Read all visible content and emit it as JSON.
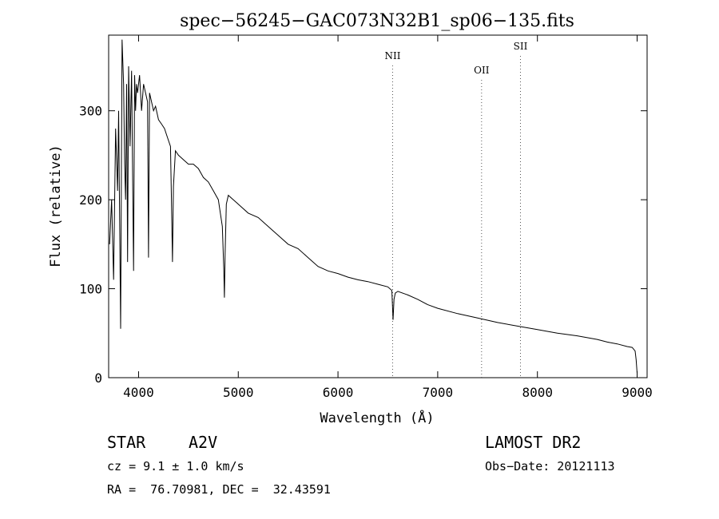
{
  "chart_data": {
    "type": "line",
    "title": "spec−56245−GAC073N32B1_sp06−135.fits",
    "xlabel": "Wavelength (Å)",
    "ylabel": "Flux (relative)",
    "xlim": [
      3700,
      9100
    ],
    "ylim": [
      0,
      385
    ],
    "x_ticks": [
      4000,
      5000,
      6000,
      7000,
      8000,
      9000
    ],
    "y_ticks": [
      0,
      100,
      200,
      300
    ],
    "grid": false,
    "line_color": "#000000",
    "reference_lines": [
      {
        "label": "NII",
        "wavelength": 6548
      },
      {
        "label": "OII",
        "wavelength": 7440
      },
      {
        "label": "SII",
        "wavelength": 7830
      }
    ],
    "series": [
      {
        "x": [
          3710,
          3730,
          3750,
          3770,
          3790,
          3800,
          3820,
          3835,
          3850,
          3860,
          3870,
          3880,
          3890,
          3900,
          3915,
          3930,
          3950,
          3960,
          3970,
          3980,
          3990,
          4010,
          4030,
          4050,
          4070,
          4090,
          4100,
          4110,
          4130,
          4150,
          4170,
          4200,
          4230,
          4260,
          4290,
          4320,
          4330,
          4340,
          4350,
          4370,
          4400,
          4450,
          4500,
          4550,
          4600,
          4650,
          4700,
          4750,
          4800,
          4840,
          4855,
          4861,
          4868,
          4880,
          4900,
          4950,
          5000,
          5100,
          5200,
          5300,
          5400,
          5500,
          5600,
          5700,
          5800,
          5900,
          6000,
          6100,
          6200,
          6300,
          6400,
          6500,
          6540,
          6552,
          6562,
          6575,
          6600,
          6700,
          6800,
          6900,
          7000,
          7200,
          7400,
          7600,
          7800,
          8000,
          8200,
          8400,
          8600,
          8700,
          8800,
          8900,
          8950,
          8980,
          8990,
          9000
        ],
        "y": [
          150,
          200,
          110,
          280,
          210,
          300,
          55,
          380,
          330,
          240,
          200,
          330,
          130,
          350,
          260,
          345,
          120,
          340,
          300,
          330,
          320,
          340,
          300,
          330,
          320,
          310,
          135,
          320,
          310,
          300,
          305,
          290,
          285,
          280,
          270,
          260,
          200,
          130,
          215,
          255,
          250,
          245,
          240,
          240,
          235,
          225,
          220,
          210,
          200,
          170,
          120,
          90,
          140,
          195,
          205,
          200,
          195,
          185,
          180,
          170,
          160,
          150,
          145,
          135,
          125,
          120,
          117,
          113,
          110,
          108,
          105,
          102,
          98,
          65,
          88,
          95,
          97,
          93,
          88,
          82,
          78,
          72,
          67,
          62,
          58,
          54,
          50,
          47,
          43,
          40,
          38,
          35,
          34,
          30,
          20,
          5
        ]
      }
    ]
  },
  "footer": {
    "object_class": "STAR",
    "subclass": "A2V",
    "survey": "LAMOST DR2",
    "redshift": "cz = 9.1 ± 1.0 km/s",
    "obs_date": "Obs−Date: 20121113",
    "coordinates": "RA =  76.70981, DEC =  32.43591"
  }
}
